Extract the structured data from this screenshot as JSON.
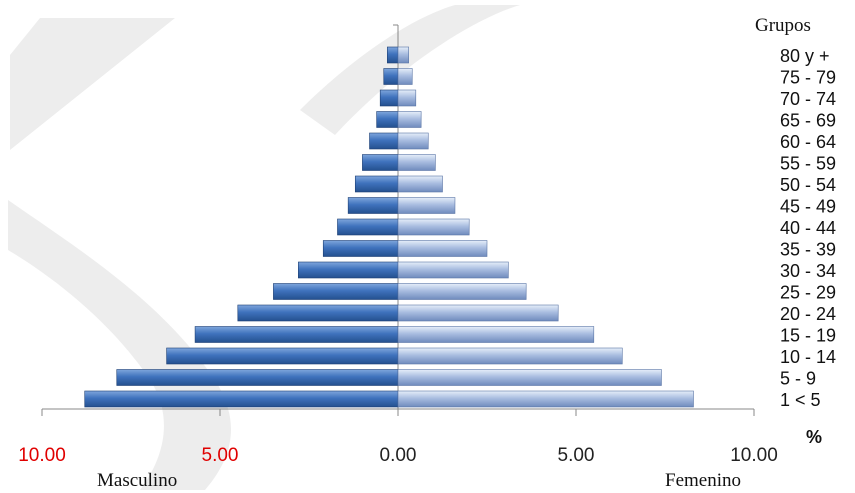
{
  "chart_data": {
    "type": "bar",
    "orientation": "horizontal-population-pyramid",
    "groups_title": "Grupos",
    "categories": [
      "1 <  5",
      "5 - 9",
      "10 - 14",
      "15 - 19",
      "20 - 24",
      "25 - 29",
      "30 - 34",
      "35 - 39",
      "40 - 44",
      "45 - 49",
      "50 - 54",
      "55 - 59",
      "60 - 64",
      "65 - 69",
      "70 - 74",
      "75 - 79",
      "80 y +"
    ],
    "series": [
      {
        "name": "Masculino",
        "side": "left",
        "values": [
          8.8,
          7.9,
          6.5,
          5.7,
          4.5,
          3.5,
          2.8,
          2.1,
          1.7,
          1.4,
          1.2,
          1.0,
          0.8,
          0.6,
          0.5,
          0.4,
          0.3
        ],
        "color": "#3c6eb4"
      },
      {
        "name": "Femenino",
        "side": "right",
        "values": [
          8.3,
          7.4,
          6.3,
          5.5,
          4.5,
          3.6,
          3.1,
          2.5,
          2.0,
          1.6,
          1.25,
          1.05,
          0.85,
          0.65,
          0.5,
          0.4,
          0.3
        ],
        "color": "#9db3d8"
      }
    ],
    "x_ticks": [
      {
        "label": "10.00",
        "value": -10,
        "color": "#e00000"
      },
      {
        "label": "5.00",
        "value": -5,
        "color": "#e00000"
      },
      {
        "label": "0.00",
        "value": 0,
        "color": "#222222"
      },
      {
        "label": "5.00",
        "value": 5,
        "color": "#222222"
      },
      {
        "label": "10.00",
        "value": 10,
        "color": "#222222"
      }
    ],
    "xlim": [
      -10,
      10
    ],
    "unit_label": "%",
    "left_label": "Masculino",
    "right_label": "Femenino",
    "grid": false
  }
}
